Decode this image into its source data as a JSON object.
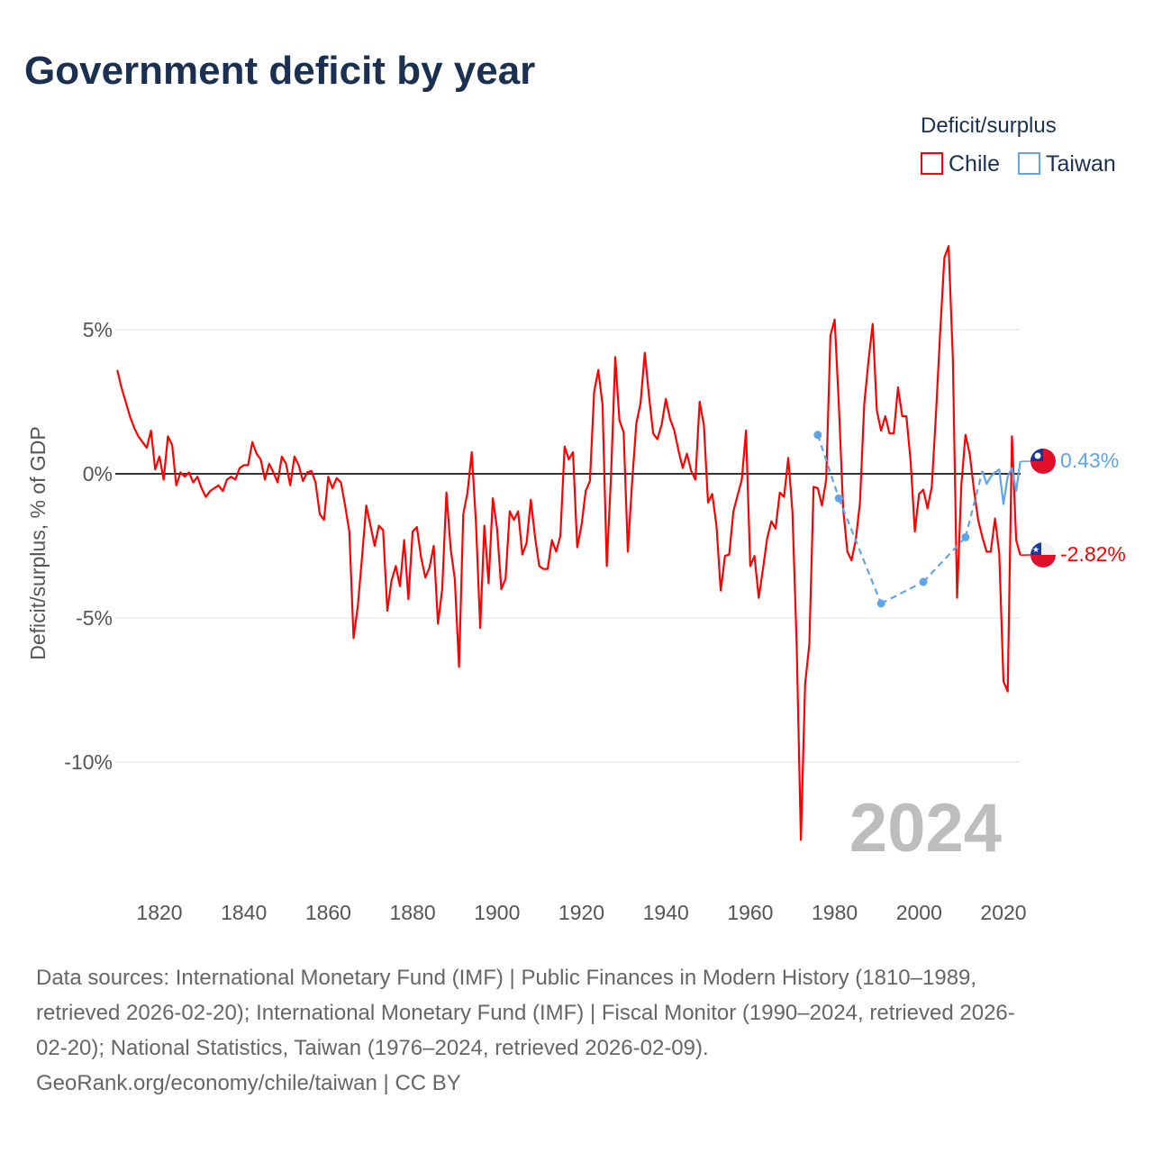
{
  "chart_data": {
    "type": "line",
    "title": "Government deficit by year",
    "xlabel": "",
    "ylabel": "Deficit/surplus, % of GDP",
    "xlim": [
      1810,
      2024
    ],
    "ylim": [
      -13,
      8.5
    ],
    "x_ticks": [
      1820,
      1840,
      1860,
      1880,
      1900,
      1920,
      1940,
      1960,
      1980,
      2000,
      2020
    ],
    "y_ticks": [
      {
        "value": 5,
        "label": "5%"
      },
      {
        "value": 0,
        "label": "0%"
      },
      {
        "value": -5,
        "label": "-5%"
      },
      {
        "value": -10,
        "label": "-10%"
      }
    ],
    "grid": true,
    "legend": {
      "title": "Deficit/surplus",
      "placement": "top-right"
    },
    "current_year_label": "2024",
    "series": [
      {
        "name": "Chile",
        "color": "#ff0000",
        "end_label": "-2.82%",
        "flag": "chile-flag",
        "points": [
          [
            1810,
            3.6
          ],
          [
            1811,
            3.0
          ],
          [
            1812,
            2.5
          ],
          [
            1813,
            2.0
          ],
          [
            1814,
            1.6
          ],
          [
            1815,
            1.3
          ],
          [
            1816,
            1.1
          ],
          [
            1817,
            0.9
          ],
          [
            1818,
            1.5
          ],
          [
            1819,
            0.15
          ],
          [
            1820,
            0.6
          ],
          [
            1821,
            -0.2
          ],
          [
            1822,
            1.3
          ],
          [
            1823,
            1.0
          ],
          [
            1824,
            -0.4
          ],
          [
            1825,
            0.05
          ],
          [
            1826,
            -0.1
          ],
          [
            1827,
            0.05
          ],
          [
            1828,
            -0.3
          ],
          [
            1829,
            -0.1
          ],
          [
            1830,
            -0.5
          ],
          [
            1831,
            -0.8
          ],
          [
            1832,
            -0.6
          ],
          [
            1833,
            -0.5
          ],
          [
            1834,
            -0.4
          ],
          [
            1835,
            -0.6
          ],
          [
            1836,
            -0.2
          ],
          [
            1837,
            -0.1
          ],
          [
            1838,
            -0.2
          ],
          [
            1839,
            0.2
          ],
          [
            1840,
            0.3
          ],
          [
            1841,
            0.3
          ],
          [
            1842,
            1.1
          ],
          [
            1843,
            0.7
          ],
          [
            1844,
            0.5
          ],
          [
            1845,
            -0.2
          ],
          [
            1846,
            0.35
          ],
          [
            1847,
            0.05
          ],
          [
            1848,
            -0.3
          ],
          [
            1849,
            0.6
          ],
          [
            1850,
            0.35
          ],
          [
            1851,
            -0.4
          ],
          [
            1852,
            0.6
          ],
          [
            1853,
            0.3
          ],
          [
            1854,
            -0.25
          ],
          [
            1855,
            0.05
          ],
          [
            1856,
            0.1
          ],
          [
            1857,
            -0.3
          ],
          [
            1858,
            -1.4
          ],
          [
            1859,
            -1.6
          ],
          [
            1860,
            -0.1
          ],
          [
            1861,
            -0.5
          ],
          [
            1862,
            -0.15
          ],
          [
            1863,
            -0.3
          ],
          [
            1864,
            -1.1
          ],
          [
            1865,
            -2.0
          ],
          [
            1866,
            -5.7
          ],
          [
            1867,
            -4.6
          ],
          [
            1868,
            -2.9
          ],
          [
            1869,
            -1.1
          ],
          [
            1870,
            -1.8
          ],
          [
            1871,
            -2.5
          ],
          [
            1872,
            -1.8
          ],
          [
            1873,
            -1.95
          ],
          [
            1874,
            -4.75
          ],
          [
            1875,
            -3.7
          ],
          [
            1876,
            -3.2
          ],
          [
            1877,
            -3.9
          ],
          [
            1878,
            -2.3
          ],
          [
            1879,
            -4.35
          ],
          [
            1880,
            -2.0
          ],
          [
            1881,
            -1.85
          ],
          [
            1882,
            -2.9
          ],
          [
            1883,
            -3.6
          ],
          [
            1884,
            -3.25
          ],
          [
            1885,
            -2.5
          ],
          [
            1886,
            -5.2
          ],
          [
            1887,
            -4.0
          ],
          [
            1888,
            -0.65
          ],
          [
            1889,
            -2.6
          ],
          [
            1890,
            -3.65
          ],
          [
            1891,
            -6.7
          ],
          [
            1892,
            -1.4
          ],
          [
            1893,
            -0.65
          ],
          [
            1894,
            0.75
          ],
          [
            1895,
            -1.7
          ],
          [
            1896,
            -5.35
          ],
          [
            1897,
            -1.8
          ],
          [
            1898,
            -3.8
          ],
          [
            1899,
            -0.85
          ],
          [
            1900,
            -1.9
          ],
          [
            1901,
            -4.0
          ],
          [
            1902,
            -3.65
          ],
          [
            1903,
            -1.3
          ],
          [
            1904,
            -1.6
          ],
          [
            1905,
            -1.3
          ],
          [
            1906,
            -2.8
          ],
          [
            1907,
            -2.4
          ],
          [
            1908,
            -0.9
          ],
          [
            1909,
            -2.2
          ],
          [
            1910,
            -3.2
          ],
          [
            1911,
            -3.3
          ],
          [
            1912,
            -3.3
          ],
          [
            1913,
            -2.3
          ],
          [
            1914,
            -2.7
          ],
          [
            1915,
            -2.15
          ],
          [
            1916,
            0.95
          ],
          [
            1917,
            0.5
          ],
          [
            1918,
            0.75
          ],
          [
            1919,
            -2.55
          ],
          [
            1920,
            -1.8
          ],
          [
            1921,
            -0.6
          ],
          [
            1922,
            -0.25
          ],
          [
            1923,
            2.85
          ],
          [
            1924,
            3.6
          ],
          [
            1925,
            2.4
          ],
          [
            1926,
            -3.2
          ],
          [
            1927,
            -0.1
          ],
          [
            1928,
            4.05
          ],
          [
            1929,
            1.85
          ],
          [
            1930,
            1.45
          ],
          [
            1931,
            -2.7
          ],
          [
            1932,
            -0.3
          ],
          [
            1933,
            1.75
          ],
          [
            1934,
            2.45
          ],
          [
            1935,
            4.2
          ],
          [
            1936,
            2.7
          ],
          [
            1937,
            1.4
          ],
          [
            1938,
            1.2
          ],
          [
            1939,
            1.7
          ],
          [
            1940,
            2.6
          ],
          [
            1941,
            1.9
          ],
          [
            1942,
            1.5
          ],
          [
            1943,
            0.8
          ],
          [
            1944,
            0.2
          ],
          [
            1945,
            0.7
          ],
          [
            1946,
            0.1
          ],
          [
            1947,
            -0.2
          ],
          [
            1948,
            2.5
          ],
          [
            1949,
            1.7
          ],
          [
            1950,
            -1.0
          ],
          [
            1951,
            -0.7
          ],
          [
            1952,
            -1.8
          ],
          [
            1953,
            -4.05
          ],
          [
            1954,
            -2.85
          ],
          [
            1955,
            -2.8
          ],
          [
            1956,
            -1.3
          ],
          [
            1957,
            -0.75
          ],
          [
            1958,
            -0.2
          ],
          [
            1959,
            1.5
          ],
          [
            1960,
            -3.2
          ],
          [
            1961,
            -2.85
          ],
          [
            1962,
            -4.3
          ],
          [
            1963,
            -3.3
          ],
          [
            1964,
            -2.25
          ],
          [
            1965,
            -1.65
          ],
          [
            1966,
            -1.9
          ],
          [
            1967,
            -0.65
          ],
          [
            1968,
            -0.8
          ],
          [
            1969,
            0.55
          ],
          [
            1970,
            -1.3
          ],
          [
            1971,
            -5.9
          ],
          [
            1972,
            -12.7
          ],
          [
            1973,
            -7.3
          ],
          [
            1974,
            -5.9
          ],
          [
            1975,
            -0.45
          ],
          [
            1976,
            -0.5
          ],
          [
            1977,
            -1.1
          ],
          [
            1978,
            -0.2
          ],
          [
            1979,
            4.8
          ],
          [
            1980,
            5.35
          ],
          [
            1981,
            2.35
          ],
          [
            1982,
            -1.2
          ],
          [
            1983,
            -2.7
          ],
          [
            1984,
            -3.0
          ],
          [
            1985,
            -2.3
          ],
          [
            1986,
            -1.0
          ],
          [
            1987,
            2.4
          ],
          [
            1988,
            3.9
          ],
          [
            1989,
            5.2
          ],
          [
            1990,
            2.2
          ],
          [
            1991,
            1.5
          ],
          [
            1992,
            2.0
          ],
          [
            1993,
            1.4
          ],
          [
            1994,
            1.4
          ],
          [
            1995,
            3.0
          ],
          [
            1996,
            2.0
          ],
          [
            1997,
            2.0
          ],
          [
            1998,
            0.45
          ],
          [
            1999,
            -2.0
          ],
          [
            2000,
            -0.7
          ],
          [
            2001,
            -0.55
          ],
          [
            2002,
            -1.2
          ],
          [
            2003,
            -0.45
          ],
          [
            2004,
            2.05
          ],
          [
            2005,
            4.9
          ],
          [
            2006,
            7.5
          ],
          [
            2007,
            7.9
          ],
          [
            2008,
            4.0
          ],
          [
            2009,
            -4.3
          ],
          [
            2010,
            -0.4
          ],
          [
            2011,
            1.35
          ],
          [
            2012,
            0.7
          ],
          [
            2013,
            -0.55
          ],
          [
            2014,
            -1.6
          ],
          [
            2015,
            -2.2
          ],
          [
            2016,
            -2.7
          ],
          [
            2017,
            -2.7
          ],
          [
            2018,
            -1.55
          ],
          [
            2019,
            -2.75
          ],
          [
            2020,
            -7.2
          ],
          [
            2021,
            -7.55
          ],
          [
            2022,
            1.3
          ],
          [
            2023,
            -2.3
          ],
          [
            2024,
            -2.82
          ]
        ]
      },
      {
        "name": "Taiwan",
        "color": "#5ea5ea",
        "end_label": "0.43%",
        "flag": "taiwan-flag",
        "points": [
          [
            1976,
            1.35
          ],
          [
            1981,
            -0.85
          ],
          [
            1991,
            -4.5
          ],
          [
            2001,
            -3.75
          ],
          [
            2011,
            -2.2
          ],
          [
            2015,
            0.1
          ],
          [
            2016,
            -0.35
          ],
          [
            2017,
            -0.1
          ],
          [
            2018,
            0.05
          ],
          [
            2019,
            0.15
          ],
          [
            2020,
            -1.05
          ],
          [
            2021,
            -0.1
          ],
          [
            2022,
            0.2
          ],
          [
            2023,
            -0.6
          ],
          [
            2024,
            0.43
          ]
        ]
      }
    ]
  },
  "footer": {
    "lines": [
      "Data sources: International Monetary Fund (IMF) | Public Finances in Modern History (1810–1989,",
      "retrieved 2026-02-20); International Monetary Fund (IMF) | Fiscal Monitor (1990–2024, retrieved 2026-",
      "02-20); National Statistics, Taiwan (1976–2024, retrieved 2026-02-09).",
      "GeoRank.org/economy/chile/taiwan | CC BY"
    ]
  }
}
